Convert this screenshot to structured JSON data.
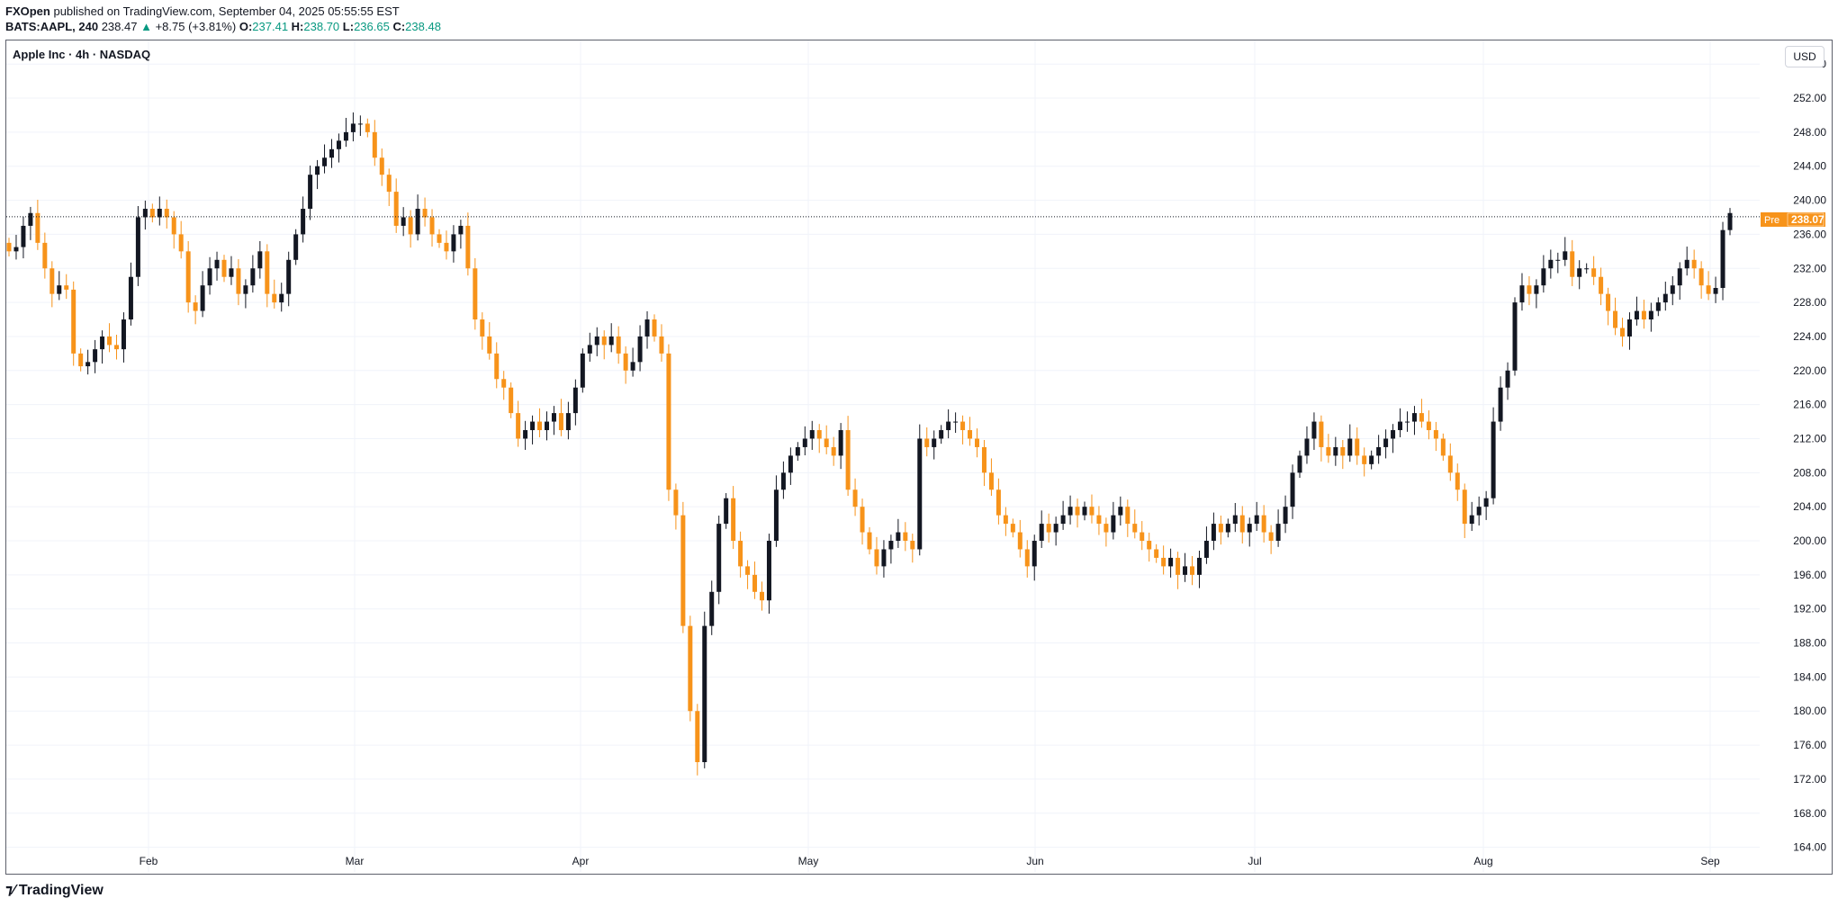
{
  "header": {
    "publisher": "FXOpen",
    "published_text": "published on TradingView.com, September 04, 2025 05:55:55 EST",
    "symbol": "BATS:AAPL, 240",
    "last": "238.47",
    "change_arrow": "▲",
    "change": "+8.75 (+3.81%)",
    "o_label": "O:",
    "o": "237.41",
    "h_label": "H:",
    "h": "238.70",
    "l_label": "L:",
    "l": "236.65",
    "c_label": "C:",
    "c": "238.48"
  },
  "legend_title": "Apple Inc · 4h · NASDAQ",
  "currency_button": "USD",
  "price_tag": {
    "prefix": "Pre",
    "value": "238.07"
  },
  "footer_brand": "TradingView",
  "colors": {
    "up": "#131722",
    "down": "#f7931a",
    "accent": "#f7931a",
    "green": "#089981"
  },
  "chart_data": {
    "type": "candlestick",
    "timeframe": "4h",
    "ylim": [
      160,
      258
    ],
    "y_ticks": [
      164,
      168,
      172,
      176,
      180,
      184,
      188,
      192,
      196,
      200,
      204,
      208,
      212,
      216,
      220,
      224,
      228,
      232,
      236,
      240,
      244,
      248,
      252,
      256
    ],
    "y_tick_labels": [
      "164.00",
      "168.00",
      "172.00",
      "176.00",
      "180.00",
      "184.00",
      "188.00",
      "192.00",
      "196.00",
      "200.00",
      "204.00",
      "208.00",
      "212.00",
      "216.00",
      "220.00",
      "224.00",
      "228.00",
      "232.00",
      "236.00",
      "240.00",
      "244.00",
      "248.00",
      "252.00",
      "256.00"
    ],
    "x_tick_labels": [
      "Feb",
      "Mar",
      "Apr",
      "May",
      "Jun",
      "Jul",
      "Aug",
      "Sep"
    ],
    "price_line": 238.07,
    "close_prices": [
      234,
      234.5,
      237,
      238.5,
      235,
      232,
      229,
      230,
      229.5,
      222,
      220.5,
      221,
      222.5,
      224,
      223,
      222.5,
      226,
      231,
      238,
      239,
      238,
      239,
      238,
      236,
      234,
      228,
      227,
      230,
      232,
      233,
      231,
      232,
      229,
      230,
      232,
      234,
      229,
      228,
      229,
      233,
      236,
      239,
      243,
      244,
      245,
      246,
      247,
      248,
      249,
      249,
      248,
      245,
      243,
      241,
      237,
      238,
      236,
      239,
      238,
      236,
      235,
      234,
      236,
      237,
      232,
      226,
      224,
      222,
      219,
      218,
      215,
      212,
      213,
      214,
      213,
      214,
      215,
      213,
      215,
      218,
      222,
      223,
      224,
      223,
      224,
      222,
      220,
      221,
      224,
      226,
      224,
      222,
      206,
      203,
      190,
      180,
      174,
      190,
      194,
      202,
      205,
      200,
      197,
      196,
      194,
      193,
      200,
      206,
      208,
      210,
      211,
      212,
      213,
      212,
      211,
      210,
      213,
      206,
      204,
      201,
      199,
      197,
      199,
      200,
      201,
      200,
      199,
      212,
      211,
      212,
      213,
      214,
      214,
      213,
      212,
      211,
      208,
      206,
      203,
      202,
      201,
      199,
      197,
      200,
      202,
      201,
      202,
      203,
      204,
      203,
      204,
      203,
      202,
      201,
      203,
      204,
      202,
      201,
      200,
      199,
      198,
      197,
      198,
      196,
      197,
      196,
      198,
      200,
      202,
      201,
      202,
      203,
      201,
      202,
      203,
      201,
      200,
      202,
      204,
      208,
      210,
      212,
      214,
      211,
      210,
      211,
      210,
      212,
      210,
      209,
      210,
      211,
      212,
      213,
      214,
      214,
      215,
      214,
      213,
      212,
      210,
      208,
      206,
      202,
      203,
      204,
      205,
      214,
      218,
      220,
      228,
      230,
      229,
      230,
      232,
      233,
      233,
      234,
      231,
      232,
      232,
      231,
      229,
      227,
      225,
      224,
      226,
      227,
      226,
      227,
      228,
      229,
      230,
      232,
      233,
      232,
      230,
      229,
      229.7,
      236.5,
      238.5
    ]
  }
}
